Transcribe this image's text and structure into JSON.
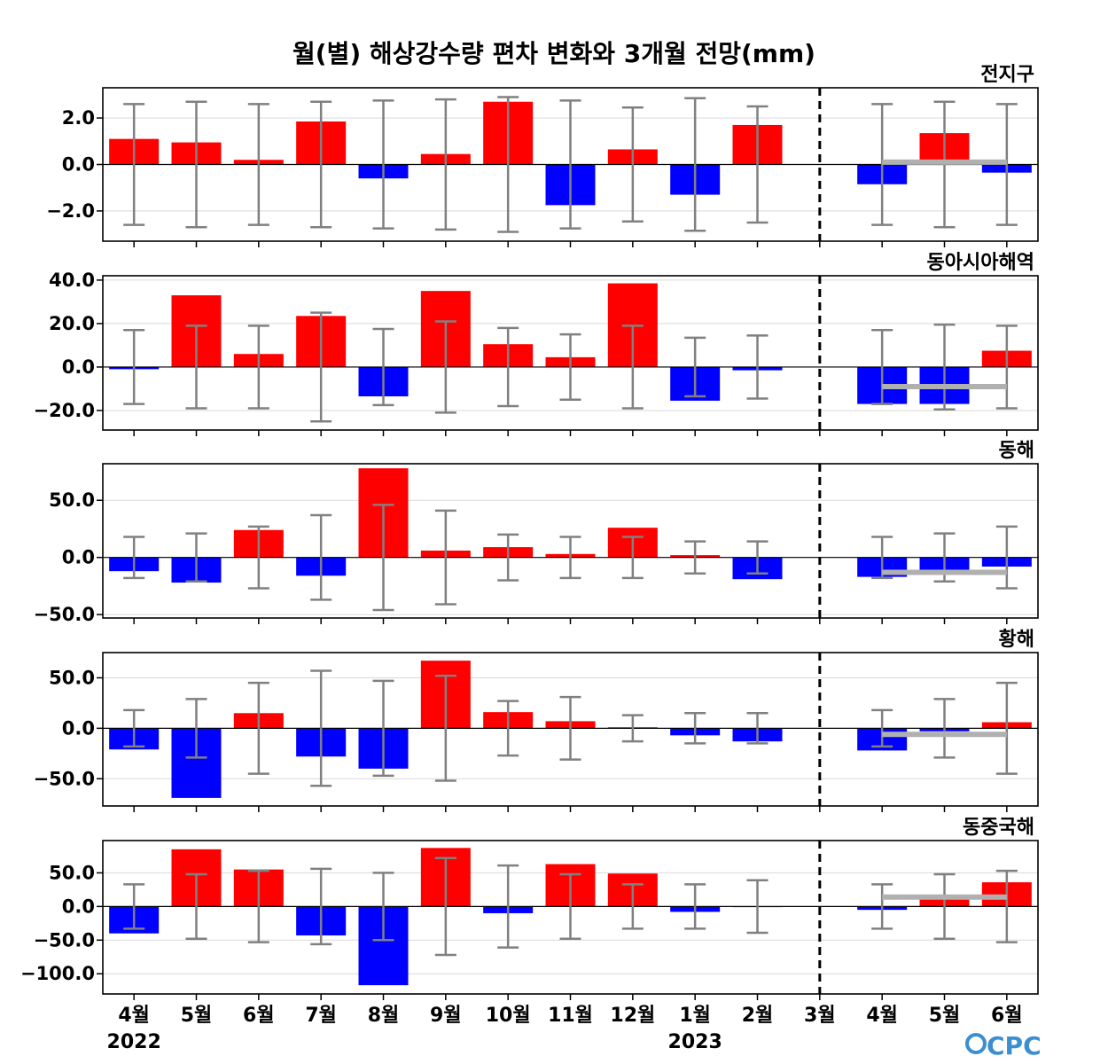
{
  "title": "월(별) 해상강수량 편차 변화와 3개월 전망(mm)",
  "logo_text": "CPC",
  "colors": {
    "positive": "#ff0000",
    "negative": "#0000ff",
    "errorbar": "#808080",
    "forecast_mean": "#b0b0b0",
    "grid": "#d9d9d9",
    "axis": "#000000"
  },
  "chart_data": [
    {
      "type": "bar",
      "title": "전지구",
      "categories": [
        "4월",
        "5월",
        "6월",
        "7월",
        "8월",
        "9월",
        "10월",
        "11월",
        "12월",
        "1월",
        "2월",
        "3월",
        "4월",
        "5월",
        "6월"
      ],
      "ylim": [
        -3.3,
        3.3
      ],
      "yticks": [
        -2.0,
        0.0,
        2.0
      ],
      "ytick_labels": [
        "−2.0",
        "0.0",
        "2.0"
      ],
      "values": [
        1.1,
        0.95,
        0.2,
        1.85,
        -0.6,
        0.45,
        2.7,
        -1.75,
        0.65,
        -1.3,
        1.7,
        0.0,
        -0.85,
        1.35,
        -0.35
      ],
      "error": [
        2.6,
        2.7,
        2.6,
        2.7,
        2.75,
        2.8,
        2.9,
        2.75,
        2.45,
        2.85,
        2.5,
        null,
        2.6,
        2.7,
        2.6
      ],
      "forecast_mean": 0.1
    },
    {
      "type": "bar",
      "title": "동아시아해역",
      "categories": [
        "4월",
        "5월",
        "6월",
        "7월",
        "8월",
        "9월",
        "10월",
        "11월",
        "12월",
        "1월",
        "2월",
        "3월",
        "4월",
        "5월",
        "6월"
      ],
      "ylim": [
        -29,
        42
      ],
      "yticks": [
        -20.0,
        0.0,
        20.0,
        40.0
      ],
      "ytick_labels": [
        "−20.0",
        "0.0",
        "20.0",
        "40.0"
      ],
      "values": [
        -1.0,
        33.0,
        6.0,
        23.5,
        -13.5,
        35.0,
        10.5,
        4.5,
        38.5,
        -15.5,
        -1.5,
        0.0,
        -17.0,
        -17.0,
        7.5
      ],
      "error": [
        17.0,
        19.0,
        19.0,
        25.0,
        17.5,
        21.0,
        18.0,
        15.0,
        19.0,
        13.5,
        14.5,
        null,
        17.0,
        19.5,
        19.0
      ],
      "forecast_mean": -9.0
    },
    {
      "type": "bar",
      "title": "동해",
      "categories": [
        "4월",
        "5월",
        "6월",
        "7월",
        "8월",
        "9월",
        "10월",
        "11월",
        "12월",
        "1월",
        "2월",
        "3월",
        "4월",
        "5월",
        "6월"
      ],
      "ylim": [
        -53,
        82
      ],
      "yticks": [
        -50.0,
        0.0,
        50.0
      ],
      "ytick_labels": [
        "−50.0",
        "0.0",
        "50.0"
      ],
      "values": [
        -12.0,
        -22.0,
        24.0,
        -16.0,
        78.0,
        6.0,
        9.0,
        3.0,
        26.0,
        2.0,
        -19.0,
        0.0,
        -17.0,
        -11.0,
        -8.0
      ],
      "error": [
        18.0,
        21.0,
        27.0,
        37.0,
        46.0,
        41.0,
        20.0,
        18.0,
        18.0,
        14.0,
        14.0,
        null,
        18.0,
        21.0,
        27.0
      ],
      "forecast_mean": -13.0
    },
    {
      "type": "bar",
      "title": "황해",
      "categories": [
        "4월",
        "5월",
        "6월",
        "7월",
        "8월",
        "9월",
        "10월",
        "11월",
        "12월",
        "1월",
        "2월",
        "3월",
        "4월",
        "5월",
        "6월"
      ],
      "ylim": [
        -77,
        75
      ],
      "yticks": [
        -50.0,
        0.0,
        50.0
      ],
      "ytick_labels": [
        "−50.0",
        "0.0",
        "50.0"
      ],
      "values": [
        -21.0,
        -69.0,
        15.0,
        -28.0,
        -40.0,
        67.0,
        16.0,
        7.0,
        1.0,
        -7.0,
        -13.0,
        0.0,
        -22.0,
        -3.0,
        6.0
      ],
      "error": [
        18.0,
        29.0,
        45.0,
        57.0,
        47.0,
        52.0,
        27.0,
        31.0,
        13.0,
        15.0,
        15.0,
        null,
        18.0,
        29.0,
        45.0
      ],
      "forecast_mean": -6.0
    },
    {
      "type": "bar",
      "title": "동중국해",
      "categories": [
        "4월",
        "5월",
        "6월",
        "7월",
        "8월",
        "9월",
        "10월",
        "11월",
        "12월",
        "1월",
        "2월",
        "3월",
        "4월",
        "5월",
        "6월"
      ],
      "ylim": [
        -130,
        98
      ],
      "yticks": [
        -100.0,
        -50.0,
        0.0,
        50.0
      ],
      "ytick_labels": [
        "−100.0",
        "−50.0",
        "0.0",
        "50.0"
      ],
      "values": [
        -40.0,
        85.0,
        55.0,
        -43.0,
        -117.0,
        87.0,
        -10.0,
        63.0,
        49.0,
        -8.0,
        -1.0,
        0.0,
        -5.0,
        16.0,
        36.0
      ],
      "error": [
        33.0,
        48.0,
        53.0,
        56.0,
        50.0,
        72.0,
        61.0,
        48.0,
        33.0,
        33.0,
        39.0,
        null,
        33.0,
        48.0,
        53.0
      ],
      "forecast_mean": 14.0
    }
  ],
  "x_axis": {
    "tick_labels": [
      "4월",
      "5월",
      "6월",
      "7월",
      "8월",
      "9월",
      "10월",
      "11월",
      "12월",
      "1월",
      "2월",
      "3월",
      "4월",
      "5월",
      "6월"
    ],
    "year_labels": [
      {
        "text": "2022",
        "index": 0
      },
      {
        "text": "2023",
        "index": 9
      }
    ]
  }
}
